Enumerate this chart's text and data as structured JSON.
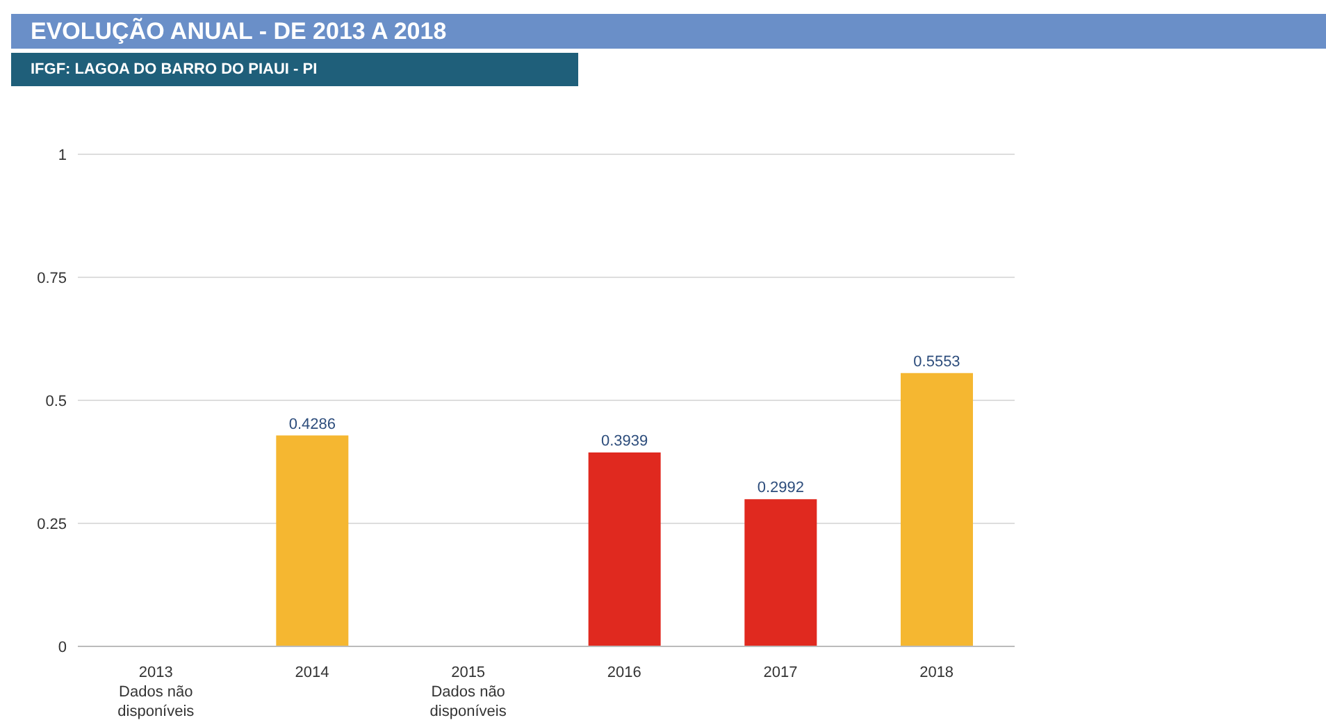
{
  "chart_data": {
    "type": "bar",
    "title": "EVOLUÇÃO ANUAL - DE 2013 A 2018",
    "subtitle": "IFGF: LAGOA DO BARRO DO PIAUI - PI",
    "categories": [
      "2013\nDados não\ndisponíveis",
      "2014",
      "2015\nDados não\ndisponíveis",
      "2016",
      "2017",
      "2018"
    ],
    "values": [
      null,
      0.4286,
      null,
      0.3939,
      0.2992,
      0.5553
    ],
    "colors": [
      "#f5b731",
      "#f5b731",
      "#e0291f",
      "#e0291f",
      "#e0291f",
      "#f5b731"
    ],
    "ylim": [
      0,
      1
    ],
    "yticks": [
      0,
      0.25,
      0.5,
      0.75,
      1
    ],
    "grid": "y",
    "data_labels": true
  }
}
